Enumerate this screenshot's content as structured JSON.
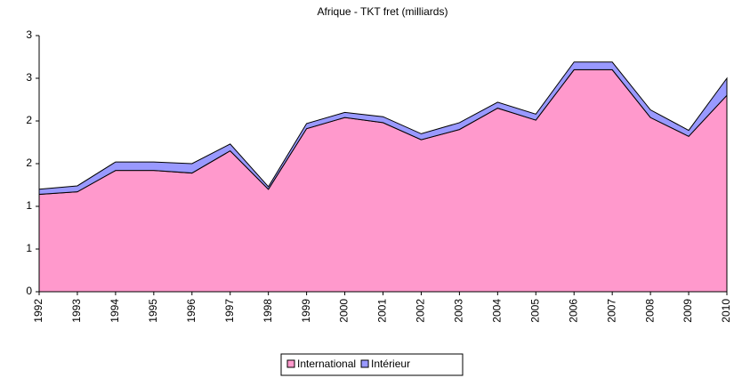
{
  "chart_data": {
    "type": "area",
    "stacked": true,
    "title": "Afrique - TKT fret (milliards)",
    "categories": [
      "1992",
      "1993",
      "1994",
      "1995",
      "1996",
      "1997",
      "1998",
      "1999",
      "2000",
      "2001",
      "2002",
      "2003",
      "2004",
      "2005",
      "2006",
      "2007",
      "2008",
      "2009",
      "2010"
    ],
    "series": [
      {
        "name": "International",
        "color": "#ff99cc",
        "values": [
          1.14,
          1.17,
          1.42,
          1.42,
          1.39,
          1.65,
          1.2,
          1.91,
          2.04,
          1.98,
          1.78,
          1.9,
          2.15,
          2.01,
          2.6,
          2.6,
          2.04,
          1.82,
          2.3
        ]
      },
      {
        "name": "Intérieur",
        "color": "#9999ff",
        "values": [
          0.06,
          0.07,
          0.1,
          0.1,
          0.11,
          0.08,
          0.03,
          0.06,
          0.06,
          0.07,
          0.07,
          0.08,
          0.07,
          0.07,
          0.09,
          0.09,
          0.09,
          0.07,
          0.2
        ]
      }
    ],
    "ylim": [
      0,
      3
    ],
    "yticks": [
      0,
      {
        "value": 0.5,
        "label": "1"
      },
      1,
      {
        "value": 1.5,
        "label": "2"
      },
      2,
      {
        "value": 2.5,
        "label": "3"
      },
      3
    ],
    "grid": false,
    "legend": "bottom"
  }
}
